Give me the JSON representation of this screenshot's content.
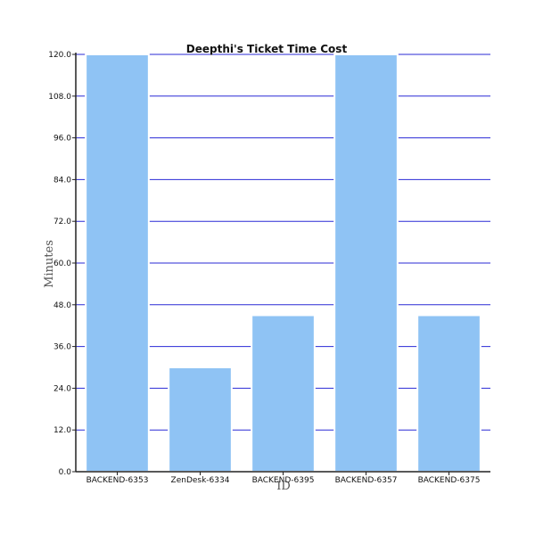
{
  "chart_data": {
    "type": "bar",
    "title": "Deepthi's Ticket Time Cost",
    "xlabel": "ID",
    "ylabel": "Minutes",
    "categories": [
      "BACKEND-6353",
      "ZenDesk-6334",
      "BACKEND-6395",
      "BACKEND-6357",
      "BACKEND-6375"
    ],
    "values": [
      120,
      30,
      45,
      120,
      45
    ],
    "ylim": [
      0,
      120
    ],
    "yticks": [
      "0.0",
      "12.0",
      "24.0",
      "36.0",
      "48.0",
      "60.0",
      "72.0",
      "84.0",
      "96.0",
      "108.0",
      "120.0"
    ],
    "grid": true,
    "legend": "none",
    "colors": {
      "bar_fill": "#8fc3f4",
      "bar_stroke": "#ffffff",
      "grid": "#2a2ad6",
      "axis": "#222222"
    }
  }
}
